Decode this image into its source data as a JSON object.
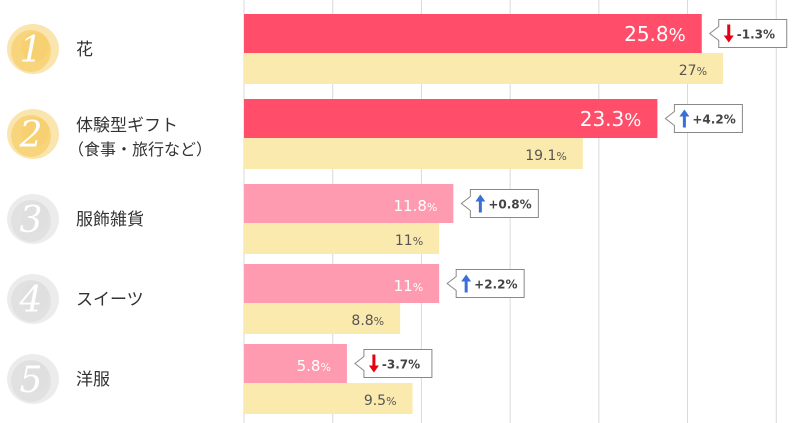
{
  "chart_data": {
    "type": "bar",
    "orientation": "horizontal",
    "xlim": [
      0,
      31
    ],
    "grid": true,
    "legend": "none",
    "colors": {
      "current_top": "#ff4d6a",
      "current_other": "#ff9bb0",
      "previous": "#fbeaae",
      "badge_gold": "#f7cf6b",
      "badge_gray": "#dddddd",
      "arrow_down": "#e60012",
      "arrow_up": "#3b6fd8",
      "grid": "#d9d9d9"
    },
    "unit": "%",
    "categories": [
      {
        "rank": "1",
        "label": "花",
        "sublabel": "",
        "current": 25.8,
        "current_text": "25.8",
        "previous": 27,
        "previous_text": "27",
        "change": "-1.3%",
        "direction": "down",
        "highlight": true
      },
      {
        "rank": "2",
        "label": "体験型ギフト",
        "sublabel": "（食事・旅行など）",
        "current": 23.3,
        "current_text": "23.3",
        "previous": 19.1,
        "previous_text": "19.1",
        "change": "+4.2%",
        "direction": "up",
        "highlight": true
      },
      {
        "rank": "3",
        "label": "服飾雑貨",
        "sublabel": "",
        "current": 11.8,
        "current_text": "11.8",
        "previous": 11,
        "previous_text": "11",
        "change": "+0.8%",
        "direction": "up",
        "highlight": false
      },
      {
        "rank": "4",
        "label": "スイーツ",
        "sublabel": "",
        "current": 11,
        "current_text": "11",
        "previous": 8.8,
        "previous_text": "8.8",
        "change": "+2.2%",
        "direction": "up",
        "highlight": false
      },
      {
        "rank": "5",
        "label": "洋服",
        "sublabel": "",
        "current": 5.8,
        "current_text": "5.8",
        "previous": 9.5,
        "previous_text": "9.5",
        "change": "-3.7%",
        "direction": "down",
        "highlight": false
      }
    ]
  }
}
